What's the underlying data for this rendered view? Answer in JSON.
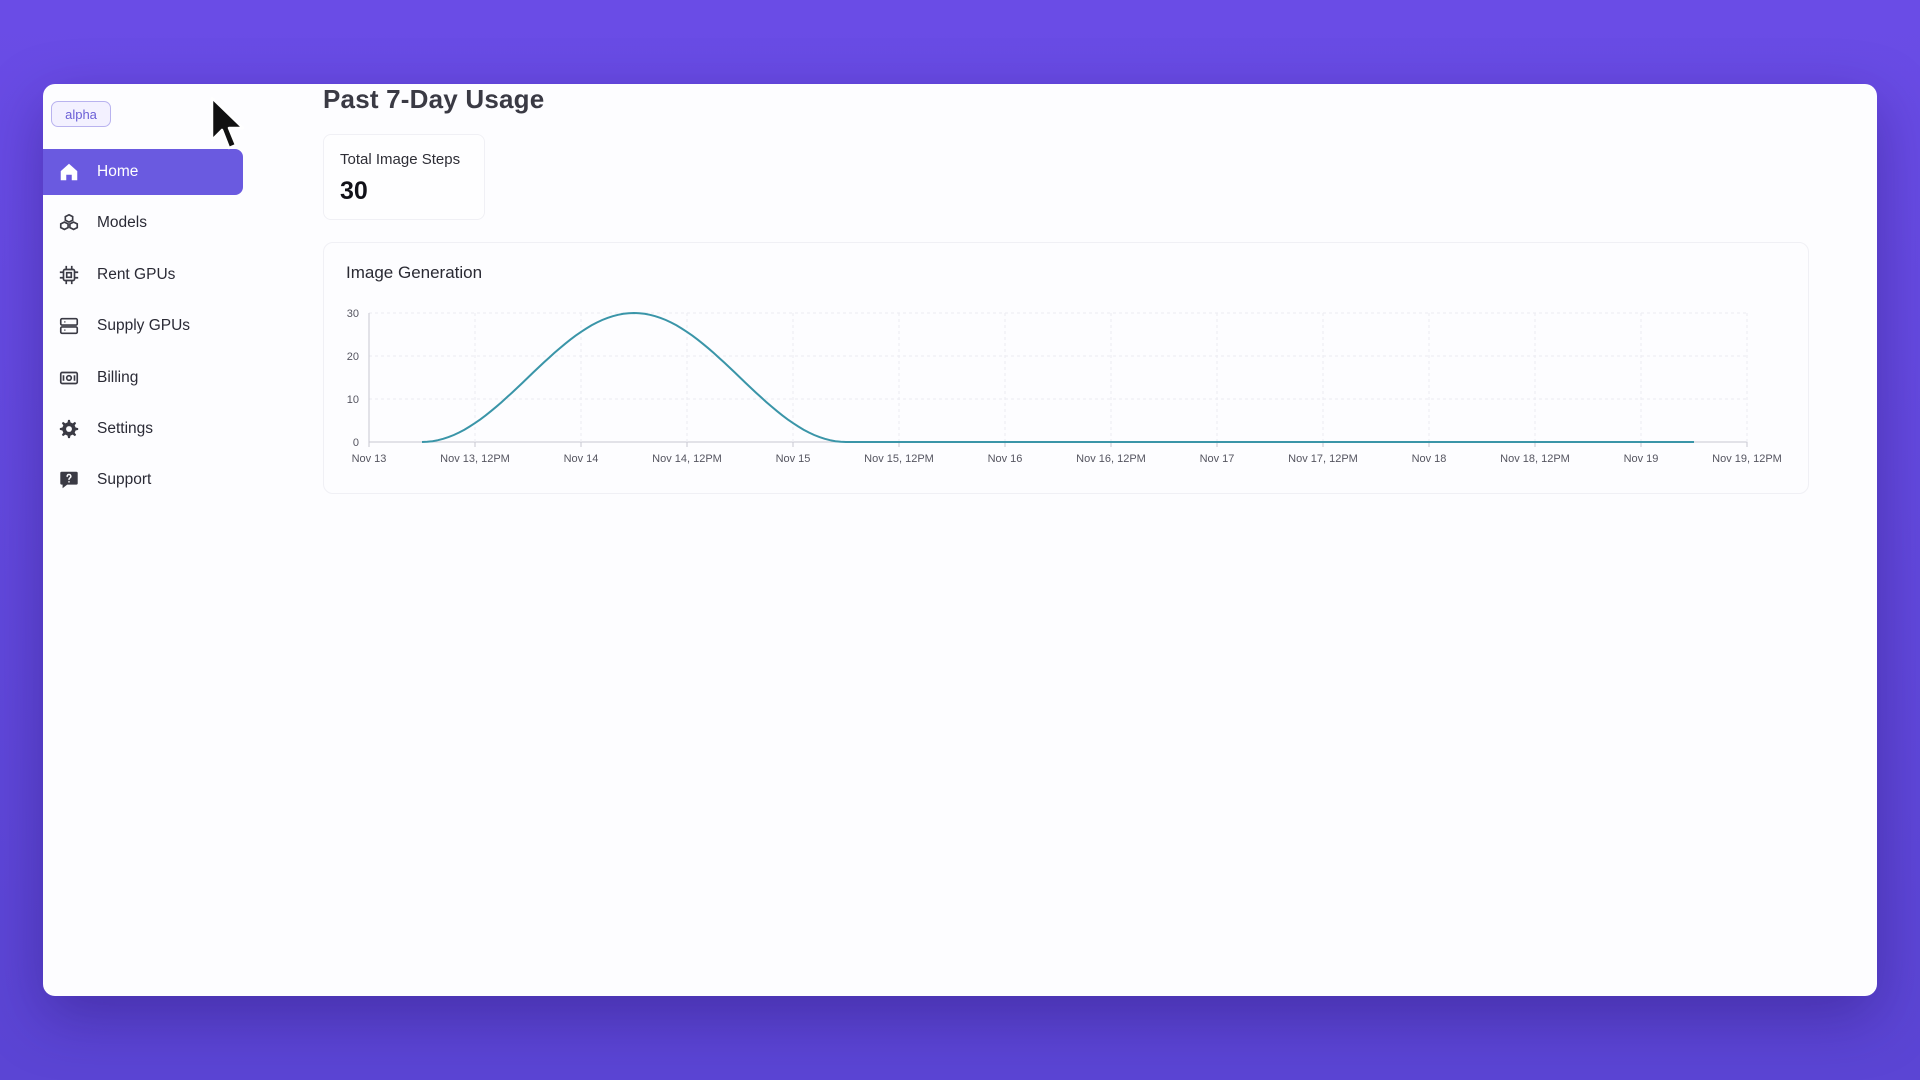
{
  "sidebar": {
    "badge": "alpha",
    "items": [
      {
        "label": "Home",
        "icon": "home-icon",
        "active": true
      },
      {
        "label": "Models",
        "icon": "cubes-icon",
        "active": false
      },
      {
        "label": "Rent GPUs",
        "icon": "chip-icon",
        "active": false
      },
      {
        "label": "Supply GPUs",
        "icon": "server-icon",
        "active": false
      },
      {
        "label": "Billing",
        "icon": "money-icon",
        "active": false
      },
      {
        "label": "Settings",
        "icon": "gear-icon",
        "active": false
      },
      {
        "label": "Support",
        "icon": "chat-question-icon",
        "active": false
      }
    ]
  },
  "main": {
    "title": "Past 7-Day Usage",
    "stat": {
      "label": "Total Image Steps",
      "value": "30"
    },
    "chart_title": "Image Generation"
  },
  "colors": {
    "background": "#6a4ce6",
    "accent": "#6a5ae0",
    "line": "#3a95a8"
  },
  "chart_data": {
    "type": "line",
    "title": "Image Generation",
    "xlabel": "",
    "ylabel": "",
    "y_ticks": [
      0,
      10,
      20,
      30
    ],
    "ylim": [
      0,
      30
    ],
    "x_tick_labels": [
      "Nov 13",
      "Nov 13, 12PM",
      "Nov 14",
      "Nov 14, 12PM",
      "Nov 15",
      "Nov 15, 12PM",
      "Nov 16",
      "Nov 16, 12PM",
      "Nov 17",
      "Nov 17, 12PM",
      "Nov 18",
      "Nov 18, 12PM",
      "Nov 19",
      "Nov 19, 12PM"
    ],
    "xlim_hours": [
      0,
      156
    ],
    "grid": true,
    "legend": "none",
    "series": [
      {
        "x_hours": [
          6,
          30,
          54,
          78,
          102,
          126,
          150
        ],
        "values": [
          0,
          30,
          0,
          0,
          0,
          0,
          0
        ]
      }
    ]
  }
}
